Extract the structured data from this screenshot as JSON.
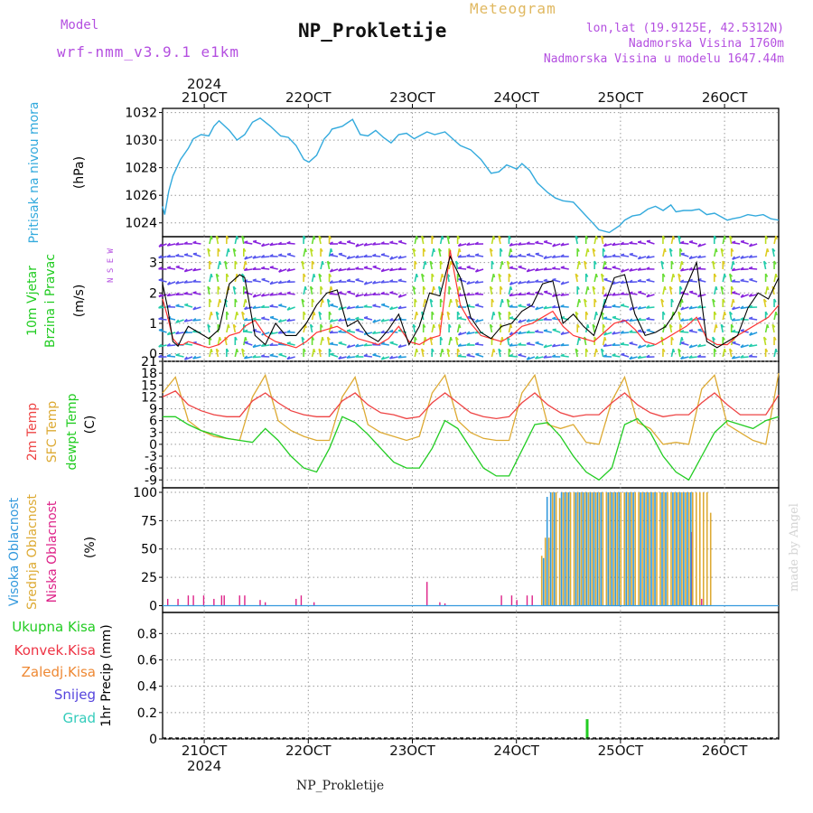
{
  "header": {
    "model_label": "Model",
    "model_name": "wrf-nmm_v3.9.1 e1km",
    "meteogram_label": "Meteogram",
    "title": "NP_Prokletije",
    "lonlat": "lon,lat (19.9125E, 42.5312N)",
    "altitude": "Nadmorska Visina 1760m",
    "model_altitude": "Nadmorska Visina u modelu 1647.44m",
    "footer_title": "NP_Prokletije",
    "credit": "made by Angel"
  },
  "time_axis": {
    "year": "2024",
    "date_labels": [
      "21OCT",
      "22OCT",
      "23OCT",
      "24OCT",
      "25OCT",
      "26OCT"
    ]
  },
  "colors": {
    "pressure": "#33aadd",
    "wind_speed": "#000000",
    "gust": "#ff3333",
    "temp2m": "#ee4444",
    "sfc_temp": "#ddaa33",
    "dewpoint": "#22cc22",
    "high_cloud": "#3399dd",
    "mid_cloud": "#ddaa33",
    "low_cloud": "#dd2288",
    "total_precip": "#22cc22",
    "conv_precip": "#ee3344",
    "frozen_precip": "#ee8833",
    "snow": "#5544dd",
    "hail": "#33ccbb",
    "purple_text": "#b44fe0"
  },
  "chart_data": [
    {
      "type": "line",
      "ylabel_lines": [
        "Pritisak na nivou mora",
        "(hPa)"
      ],
      "yticks": [
        1024,
        1026,
        1028,
        1030,
        1032
      ],
      "ylim": [
        1023,
        1032.3
      ],
      "x_days": [
        0,
        0.04,
        0.12,
        0.2,
        0.35,
        0.5,
        0.6,
        0.75,
        0.9,
        1.0,
        1.1,
        1.3,
        1.45,
        1.6,
        1.75,
        1.9,
        2.1,
        2.3,
        2.45,
        2.6,
        2.75,
        2.85,
        3.0,
        3.15,
        3.25,
        3.3,
        3.5,
        3.7,
        3.85,
        4.0,
        4.15,
        4.3,
        4.45,
        4.6,
        4.75,
        4.9,
        5.0,
        5.15,
        5.3,
        5.5,
        5.65,
        5.8,
        6.0,
        6.2,
        6.4,
        6.55,
        6.7,
        6.9,
        7.0,
        7.15,
        7.3,
        7.5,
        7.65,
        7.8,
        8.0,
        8.2,
        8.35,
        8.5,
        8.7,
        8.9,
        9.0,
        9.15,
        9.3,
        9.45,
        9.6,
        9.75,
        9.9,
        10.0,
        10.15,
        10.3,
        10.45,
        10.6,
        10.75,
        10.9,
        11.0,
        11.1,
        11.25,
        11.4,
        11.55,
        11.7,
        11.85,
        12.0
      ],
      "series": [
        {
          "values": [
            1025.2,
            1024.6,
            1026.3,
            1027.4,
            1028.6,
            1029.4,
            1030.1,
            1030.4,
            1030.3,
            1031.0,
            1031.4,
            1030.7,
            1030.0,
            1030.4,
            1031.3,
            1031.6,
            1031.0,
            1030.3,
            1030.2,
            1029.6,
            1028.6,
            1028.4,
            1028.9,
            1030.1,
            1030.5,
            1030.8,
            1031.0,
            1031.5,
            1030.4,
            1030.3,
            1030.7,
            1030.2,
            1029.8,
            1030.4,
            1030.5,
            1030.1,
            1030.3,
            1030.6,
            1030.4,
            1030.6,
            1030.1,
            1029.6,
            1029.3,
            1028.6,
            1027.6,
            1027.7,
            1028.2,
            1027.9,
            1028.3,
            1027.8,
            1026.9,
            1026.2,
            1025.8,
            1025.6,
            1025.5,
            1024.7,
            1024.1,
            1023.5,
            1023.3,
            1023.8,
            1024.2,
            1024.5,
            1024.6,
            1025.0,
            1025.2,
            1024.9,
            1025.3,
            1024.8,
            1024.9,
            1024.9,
            1025.0,
            1024.6,
            1024.7,
            1024.4,
            1024.2,
            1024.3,
            1024.4,
            1024.6,
            1024.5,
            1024.6,
            1024.3,
            1024.2
          ]
        }
      ]
    },
    {
      "type": "line",
      "ylabel_lines": [
        "10m Vjetar",
        "Brzina i Pravac",
        "(m/s)"
      ],
      "compass": "N S E W",
      "yticks": [
        0,
        1,
        2,
        3
      ],
      "ylim": [
        -0.25,
        3.85
      ],
      "x_days": [
        0,
        0.1,
        0.2,
        0.3,
        0.4,
        0.5,
        0.7,
        0.9,
        1.1,
        1.3,
        1.5,
        1.6,
        1.8,
        2.0,
        2.2,
        2.4,
        2.6,
        2.8,
        3.0,
        3.2,
        3.4,
        3.6,
        3.8,
        4.0,
        4.2,
        4.4,
        4.6,
        4.8,
        5.0,
        5.2,
        5.4,
        5.6,
        5.8,
        6.0,
        6.2,
        6.4,
        6.6,
        6.8,
        7.0,
        7.2,
        7.4,
        7.6,
        7.8,
        8.0,
        8.2,
        8.4,
        8.6,
        8.8,
        9.0,
        9.2,
        9.4,
        9.6,
        9.8,
        10.0,
        10.2,
        10.4,
        10.6,
        10.8,
        11.0,
        11.2,
        11.4,
        11.6,
        11.8,
        12.0
      ],
      "series": [
        {
          "values": [
            2.3,
            1.5,
            0.4,
            0.25,
            0.6,
            0.9,
            0.7,
            0.5,
            0.8,
            2.3,
            2.6,
            2.5,
            0.6,
            0.3,
            1.0,
            0.6,
            0.6,
            1.0,
            1.6,
            2.0,
            2.1,
            0.9,
            1.1,
            0.6,
            0.4,
            0.8,
            1.3,
            0.3,
            0.9,
            2.0,
            1.9,
            3.2,
            2.5,
            1.2,
            0.7,
            0.5,
            0.9,
            1.0,
            1.4,
            1.6,
            2.3,
            2.4,
            1.0,
            1.3,
            0.9,
            0.6,
            1.6,
            2.5,
            2.6,
            1.3,
            0.6,
            0.7,
            0.9,
            1.4,
            2.2,
            3.0,
            0.4,
            0.2,
            0.4,
            0.6,
            1.5,
            2.0,
            1.8,
            2.5
          ]
        },
        {
          "values": [
            1.8,
            1.2,
            0.5,
            0.3,
            0.3,
            0.4,
            0.3,
            0.2,
            0.3,
            0.6,
            0.7,
            0.9,
            1.1,
            0.6,
            0.4,
            0.3,
            0.2,
            0.4,
            0.7,
            0.8,
            0.9,
            0.7,
            0.5,
            0.4,
            0.3,
            0.5,
            0.9,
            0.4,
            0.3,
            0.5,
            0.6,
            3.4,
            1.6,
            1.0,
            0.6,
            0.5,
            0.4,
            0.6,
            0.9,
            1.0,
            1.2,
            1.4,
            0.9,
            0.6,
            0.5,
            0.4,
            0.7,
            1.0,
            1.1,
            0.8,
            0.4,
            0.3,
            0.5,
            0.7,
            0.9,
            1.2,
            0.5,
            0.3,
            0.3,
            0.6,
            0.8,
            1.0,
            1.2,
            1.6
          ]
        }
      ]
    },
    {
      "type": "line",
      "ylabel_lines": [
        "2m Temp",
        "SFC Temp",
        "dewpt Temp",
        "(C)"
      ],
      "yticks": [
        -9,
        -6,
        -3,
        0,
        3,
        6,
        9,
        12,
        15,
        18,
        21
      ],
      "ylim": [
        -11,
        21
      ],
      "x_days": [
        0,
        0.25,
        0.5,
        0.75,
        1.0,
        1.25,
        1.5,
        1.75,
        2.0,
        2.25,
        2.5,
        2.75,
        3.0,
        3.25,
        3.5,
        3.75,
        4.0,
        4.25,
        4.5,
        4.75,
        5.0,
        5.25,
        5.5,
        5.75,
        6.0,
        6.25,
        6.5,
        6.75,
        7.0,
        7.25,
        7.5,
        7.75,
        8.0,
        8.25,
        8.5,
        8.75,
        9.0,
        9.25,
        9.5,
        9.75,
        10.0,
        10.25,
        10.5,
        10.75,
        11.0,
        11.25,
        11.5,
        11.75,
        12.0
      ],
      "series": [
        {
          "values": [
            12.0,
            13.5,
            10.0,
            8.5,
            7.5,
            7.0,
            7.0,
            11.0,
            13.0,
            10.5,
            8.5,
            7.5,
            7.0,
            7.0,
            11.0,
            13.0,
            10.0,
            8.0,
            7.5,
            6.5,
            7.0,
            10.5,
            13.0,
            10.5,
            8.0,
            7.0,
            6.5,
            7.0,
            10.5,
            13.0,
            10.0,
            8.0,
            7.0,
            7.5,
            7.5,
            10.5,
            13.0,
            10.0,
            8.0,
            7.0,
            7.5,
            7.5,
            10.5,
            13.0,
            10.0,
            7.5,
            7.5,
            7.5,
            12.5
          ]
        },
        {
          "values": [
            13.0,
            17.0,
            6.0,
            3.5,
            2.0,
            1.5,
            1.0,
            12.0,
            17.5,
            6.0,
            3.5,
            2.0,
            1.0,
            1.0,
            12.0,
            17.0,
            5.0,
            3.0,
            2.0,
            1.0,
            2.0,
            13.0,
            17.5,
            6.0,
            3.0,
            1.5,
            1.0,
            1.0,
            13.0,
            17.5,
            5.0,
            4.0,
            5.0,
            0.5,
            0.0,
            11.0,
            17.0,
            5.5,
            4.0,
            0.0,
            0.5,
            0.0,
            14.0,
            17.5,
            5.0,
            3.0,
            1.0,
            0.0,
            18.0
          ]
        },
        {
          "values": [
            7.0,
            7.0,
            5.0,
            3.5,
            2.5,
            1.5,
            1.0,
            0.5,
            4.0,
            1.0,
            -3.0,
            -6.0,
            -7.0,
            -1.0,
            7.0,
            5.5,
            2.5,
            -1.0,
            -4.5,
            -6.0,
            -6.0,
            -1.0,
            6.0,
            4.0,
            -1.0,
            -6.0,
            -8.0,
            -8.0,
            -1.5,
            5.0,
            5.5,
            2.0,
            -3.0,
            -7.0,
            -9.0,
            -6.0,
            5.0,
            6.5,
            3.0,
            -3.0,
            -7.0,
            -9.0,
            -3.0,
            3.0,
            6.0,
            5.0,
            4.0,
            6.0,
            7.0
          ]
        }
      ]
    },
    {
      "type": "bar",
      "ylabel_lines": [
        "Visoka Oblacnost",
        "Srednja Oblacnost",
        "Niska Oblacnost",
        "(%)"
      ],
      "yticks": [
        0,
        25,
        50,
        75,
        100
      ],
      "ylim": [
        -6,
        104
      ],
      "low_x_days": [
        0.1,
        0.3,
        0.5,
        0.6,
        0.8,
        1.0,
        1.15,
        1.2,
        1.5,
        1.6,
        1.9,
        2.0,
        2.6,
        2.7,
        2.95,
        5.15,
        5.4,
        5.5,
        6.6,
        6.8,
        6.9,
        7.1,
        7.2,
        10.3,
        10.5
      ],
      "low_values": [
        6,
        6,
        9,
        9,
        9,
        6,
        9,
        9,
        9,
        9,
        5,
        3,
        6,
        9,
        3,
        21,
        3,
        2,
        9,
        9,
        5,
        9,
        9,
        65,
        6
      ],
      "highmid_x_days": [
        7.35,
        7.42,
        7.49,
        7.56,
        7.63,
        7.7,
        7.77,
        7.84,
        7.91,
        7.98,
        8.05,
        8.12,
        8.19,
        8.26,
        8.33,
        8.4,
        8.47,
        8.54,
        8.61,
        8.68,
        8.75,
        8.82,
        8.89,
        8.96,
        9.03,
        9.1,
        9.17,
        9.24,
        9.31,
        9.38,
        9.45,
        9.52,
        9.59,
        9.66,
        9.73,
        9.8,
        9.87,
        9.94,
        10.01,
        10.08,
        10.15,
        10.22,
        10.29,
        10.36,
        10.43,
        10.5,
        10.57,
        10.64
      ],
      "high_values": [
        0,
        42,
        96,
        100,
        100,
        0,
        100,
        100,
        100,
        0,
        100,
        100,
        100,
        100,
        100,
        100,
        100,
        100,
        0,
        100,
        100,
        100,
        100,
        0,
        100,
        100,
        100,
        0,
        100,
        100,
        100,
        100,
        100,
        0,
        100,
        100,
        0,
        100,
        100,
        100,
        100,
        100,
        100,
        0,
        0,
        0,
        0,
        0
      ],
      "mid_values": [
        44,
        60,
        60,
        100,
        100,
        95,
        100,
        100,
        100,
        100,
        100,
        100,
        100,
        100,
        100,
        100,
        100,
        100,
        100,
        100,
        100,
        100,
        100,
        100,
        100,
        100,
        100,
        100,
        100,
        100,
        100,
        100,
        100,
        100,
        100,
        100,
        100,
        100,
        100,
        100,
        100,
        100,
        100,
        100,
        100,
        100,
        100,
        82
      ]
    },
    {
      "type": "bar",
      "ylabel_lines": [
        "1hr Precip (mm)"
      ],
      "legend": [
        "Ukupna Kisa",
        "Konvek.Kisa",
        "Zaledj.Kisa",
        "Snijeg",
        "Grad"
      ],
      "yticks": [
        0,
        0.2,
        0.4,
        0.6,
        0.8
      ],
      "ylim": [
        0,
        0.96
      ],
      "x_days": [
        8.27
      ],
      "values": [
        0.15
      ]
    }
  ]
}
